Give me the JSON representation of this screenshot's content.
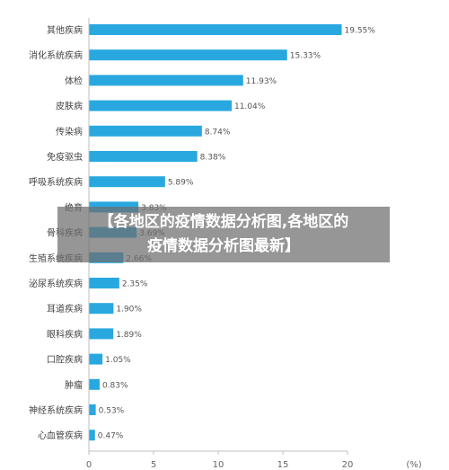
{
  "chart_data": {
    "type": "bar",
    "orientation": "horizontal",
    "categories": [
      "其他疾病",
      "消化系统疾病",
      "体检",
      "皮肤病",
      "传染病",
      "免疫驱虫",
      "呼吸系统疾病",
      "绝育",
      "骨科疾病",
      "生殖系统疾病",
      "泌尿系统疾病",
      "耳道疾病",
      "眼科疾病",
      "口腔疾病",
      "肿瘤",
      "神经系统疾病",
      "心血管疾病"
    ],
    "values": [
      19.55,
      15.33,
      11.93,
      11.04,
      8.74,
      8.38,
      5.89,
      3.83,
      3.69,
      2.66,
      2.35,
      1.9,
      1.89,
      1.05,
      0.83,
      0.53,
      0.47
    ],
    "value_labels": [
      "19.55%",
      "15.33%",
      "11.93%",
      "11.04%",
      "8.74%",
      "8.38%",
      "5.89%",
      "3.83%",
      "3.69%",
      "2.66%",
      "2.35%",
      "1.90%",
      "1.89%",
      "1.05%",
      "0.83%",
      "0.53%",
      "0.47%"
    ],
    "x_ticks": [
      "0",
      "5",
      "10",
      "15",
      "20"
    ],
    "xlim": [
      0,
      20
    ],
    "x_unit_label": "(%)",
    "bar_color": "#29a8e0",
    "grid": false
  },
  "banner": {
    "line1": "【各地区的疫情数据分析图,各地区的",
    "line2": "疫情数据分析图最新】"
  }
}
